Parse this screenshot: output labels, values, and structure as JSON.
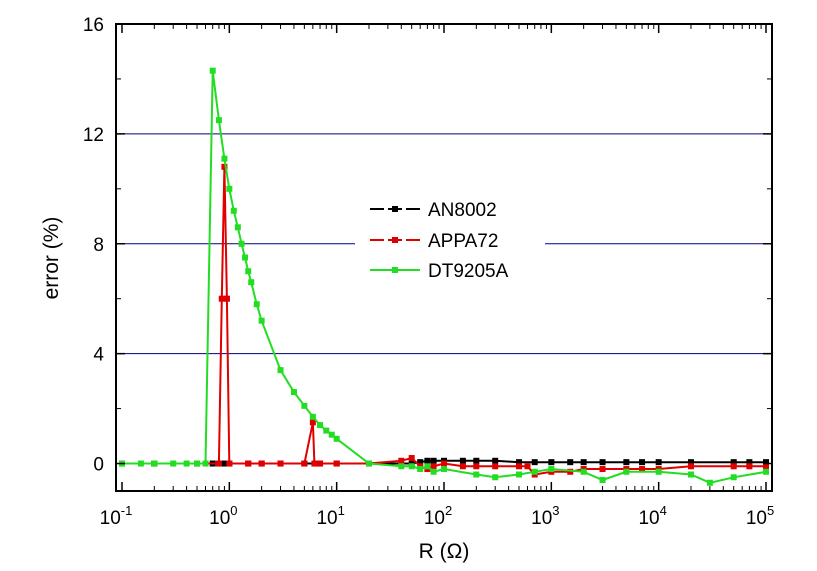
{
  "chart_data": {
    "type": "line",
    "title": "",
    "xlabel": "R (Ω)",
    "ylabel": "error (%)",
    "x_scale": "log10",
    "xlim": [
      0.1,
      100000
    ],
    "ylim": [
      -1,
      16
    ],
    "x_ticks": [
      {
        "value": 0.1,
        "base": "10",
        "exp": "-1"
      },
      {
        "value": 1,
        "base": "10",
        "exp": "0"
      },
      {
        "value": 10,
        "base": "10",
        "exp": "1"
      },
      {
        "value": 100,
        "base": "10",
        "exp": "2"
      },
      {
        "value": 1000,
        "base": "10",
        "exp": "3"
      },
      {
        "value": 10000,
        "base": "10",
        "exp": "4"
      },
      {
        "value": 100000,
        "base": "10",
        "exp": "5"
      }
    ],
    "y_ticks": [
      {
        "value": 0,
        "label": "0"
      },
      {
        "value": 4,
        "label": "4"
      },
      {
        "value": 8,
        "label": "8"
      },
      {
        "value": 12,
        "label": "12"
      },
      {
        "value": 16,
        "label": "16"
      }
    ],
    "gridlines_y": [
      4,
      8,
      12
    ],
    "grid_color": "#000080",
    "legend_position": "center",
    "series": [
      {
        "name": "AN8002",
        "color": "#000000",
        "x": [
          0.1,
          0.2,
          0.5,
          0.7,
          0.8,
          0.9,
          1,
          1.5,
          2,
          3,
          5,
          7,
          10,
          20,
          50,
          60,
          70,
          80,
          100,
          150,
          200,
          300,
          500,
          700,
          1000,
          1500,
          2000,
          3000,
          5000,
          7000,
          10000,
          20000,
          50000,
          70000,
          100000
        ],
        "y": [
          0,
          0,
          0,
          0,
          0,
          0,
          0,
          0,
          0,
          0,
          0,
          0,
          0,
          0,
          0,
          0.05,
          0.1,
          0.1,
          0.1,
          0.1,
          0.1,
          0.1,
          0.05,
          0.05,
          0.05,
          0.05,
          0.05,
          0.05,
          0.05,
          0.05,
          0.05,
          0.05,
          0.05,
          0.05,
          0.05
        ]
      },
      {
        "name": "APPA72",
        "color": "#e00000",
        "x": [
          0.1,
          0.2,
          0.5,
          0.8,
          0.85,
          0.9,
          0.95,
          1,
          1.5,
          2,
          3,
          5,
          6,
          6.2,
          6.5,
          7,
          10,
          20,
          40,
          50,
          60,
          70,
          80,
          100,
          150,
          200,
          300,
          500,
          600,
          700,
          1000,
          1500,
          2000,
          3000,
          5000,
          7000,
          10000,
          20000,
          50000,
          70000,
          100000
        ],
        "y": [
          0,
          0,
          0,
          0,
          6,
          10.8,
          6,
          0,
          0,
          0,
          0,
          0,
          1.5,
          0,
          0,
          0,
          0,
          0,
          0.1,
          0.2,
          -0.1,
          -0.2,
          -0.1,
          0,
          -0.1,
          -0.1,
          -0.1,
          -0.1,
          -0.1,
          -0.4,
          -0.3,
          -0.3,
          -0.2,
          -0.2,
          -0.2,
          -0.2,
          -0.2,
          -0.1,
          -0.1,
          -0.1,
          -0.1
        ]
      },
      {
        "name": "DT9205A",
        "color": "#22dd22",
        "x": [
          0.1,
          0.15,
          0.2,
          0.3,
          0.4,
          0.5,
          0.6,
          0.7,
          0.8,
          0.9,
          1,
          1.1,
          1.2,
          1.3,
          1.4,
          1.5,
          1.6,
          1.8,
          2,
          3,
          4,
          5,
          6,
          7,
          8,
          9,
          10,
          20,
          40,
          50,
          60,
          70,
          80,
          100,
          200,
          300,
          500,
          700,
          1000,
          2000,
          3000,
          5000,
          10000,
          20000,
          30000,
          50000,
          100000
        ],
        "y": [
          0,
          0,
          0,
          0,
          0,
          0,
          0,
          14.3,
          12.5,
          11.1,
          10,
          9.2,
          8.6,
          8,
          7.5,
          7,
          6.6,
          5.8,
          5.2,
          3.4,
          2.6,
          2.1,
          1.7,
          1.4,
          1.2,
          1.05,
          0.9,
          0,
          -0.1,
          -0.1,
          -0.2,
          -0.1,
          -0.3,
          -0.2,
          -0.4,
          -0.5,
          -0.4,
          -0.3,
          -0.2,
          -0.3,
          -0.6,
          -0.3,
          -0.3,
          -0.4,
          -0.7,
          -0.5,
          -0.3
        ]
      }
    ]
  }
}
